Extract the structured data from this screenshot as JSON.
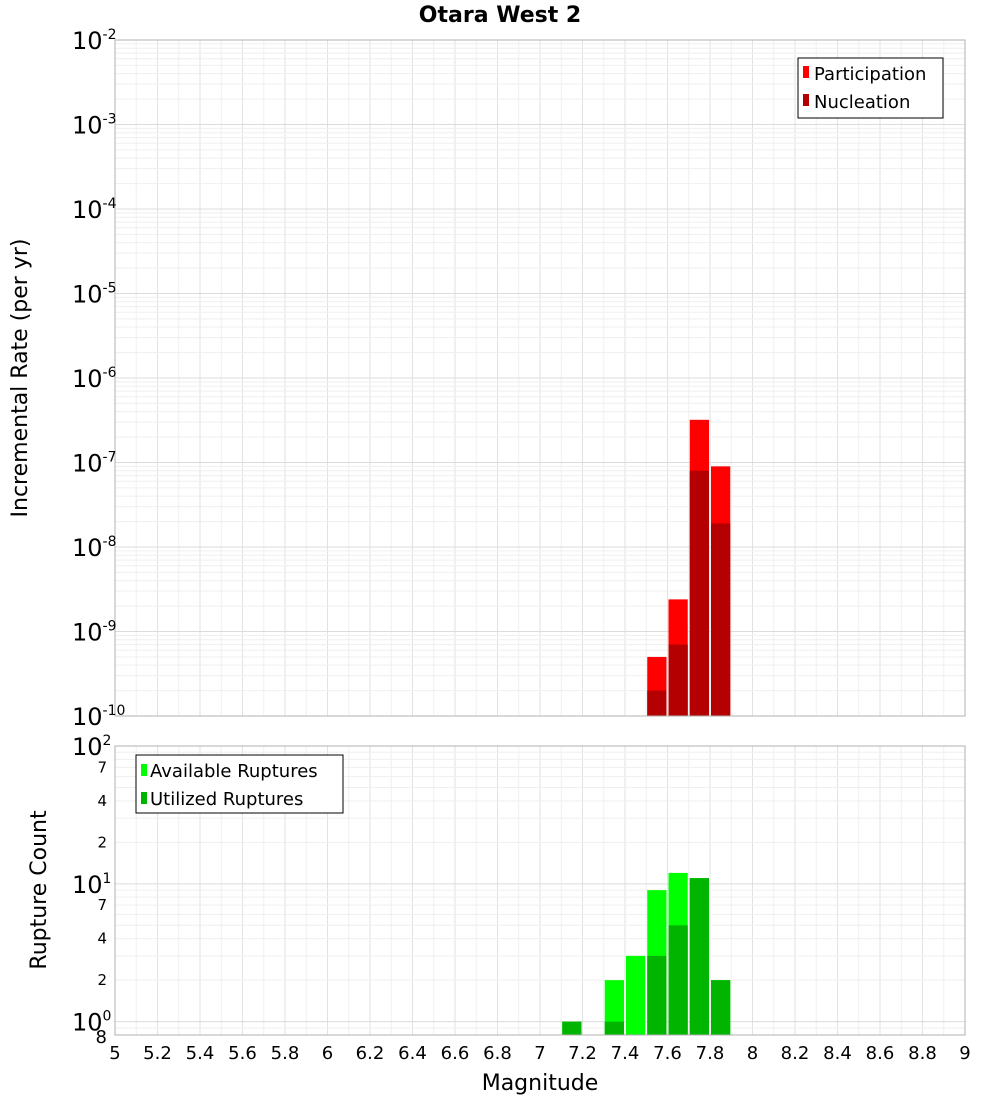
{
  "chart_data": [
    {
      "type": "bar",
      "title": "Otara West 2",
      "xlabel": "Magnitude",
      "ylabel": "Incremental Rate (per yr)",
      "yscale": "log",
      "xlim": [
        5,
        9
      ],
      "ylim": [
        1e-10,
        0.01
      ],
      "grid": true,
      "legend_position": "top-right",
      "y_major_ticks": [
        {
          "base": "10",
          "exp": "-10",
          "value": 1e-10
        },
        {
          "base": "10",
          "exp": "-9",
          "value": 1e-09
        },
        {
          "base": "10",
          "exp": "-8",
          "value": 1e-08
        },
        {
          "base": "10",
          "exp": "-7",
          "value": 1e-07
        },
        {
          "base": "10",
          "exp": "-6",
          "value": 1e-06
        },
        {
          "base": "10",
          "exp": "-5",
          "value": 1e-05
        },
        {
          "base": "10",
          "exp": "-4",
          "value": 0.0001
        },
        {
          "base": "10",
          "exp": "-3",
          "value": 0.001
        },
        {
          "base": "10",
          "exp": "-2",
          "value": 0.01
        }
      ],
      "series": [
        {
          "name": "Participation",
          "color": "#ff0000",
          "x": [
            7.55,
            7.65,
            7.75,
            7.85
          ],
          "values": [
            5e-10,
            2.4e-09,
            3.2e-07,
            9e-08
          ]
        },
        {
          "name": "Nucleation",
          "color": "#b40000",
          "x": [
            7.55,
            7.65,
            7.75,
            7.85
          ],
          "values": [
            2e-10,
            7e-10,
            8e-08,
            1.9e-08
          ]
        }
      ]
    },
    {
      "type": "bar",
      "title": "",
      "xlabel": "Magnitude",
      "ylabel": "Rupture Count",
      "yscale": "log",
      "xlim": [
        5,
        9
      ],
      "ylim": [
        0.8,
        100
      ],
      "grid": true,
      "legend_position": "top-left",
      "y_major_ticks": [
        {
          "base": "10",
          "exp": "0",
          "value": 1
        },
        {
          "base": "10",
          "exp": "1",
          "value": 10
        },
        {
          "base": "10",
          "exp": "2",
          "value": 100
        }
      ],
      "y_minor_ticks": [
        {
          "label": "8",
          "value": 0.8
        },
        {
          "label": "2",
          "value": 2
        },
        {
          "label": "4",
          "value": 4
        },
        {
          "label": "7",
          "value": 7
        },
        {
          "label": "2",
          "value": 20
        },
        {
          "label": "4",
          "value": 40
        },
        {
          "label": "7",
          "value": 70
        }
      ],
      "x_ticks": [
        "5",
        "5.2",
        "5.4",
        "5.6",
        "5.8",
        "6",
        "6.2",
        "6.4",
        "6.6",
        "6.8",
        "7",
        "7.2",
        "7.4",
        "7.6",
        "7.8",
        "8",
        "8.2",
        "8.4",
        "8.6",
        "8.8",
        "9"
      ],
      "series": [
        {
          "name": "Available Ruptures",
          "color": "#00ff00",
          "x": [
            7.15,
            7.35,
            7.45,
            7.55,
            7.65,
            7.75,
            7.85
          ],
          "values": [
            1,
            2,
            3,
            9,
            12,
            11,
            2
          ]
        },
        {
          "name": "Utilized Ruptures",
          "color": "#00b400",
          "x": [
            7.15,
            7.35,
            7.45,
            7.55,
            7.65,
            7.75,
            7.85
          ],
          "values": [
            1,
            1,
            0,
            3,
            5,
            11,
            2
          ]
        }
      ]
    }
  ]
}
